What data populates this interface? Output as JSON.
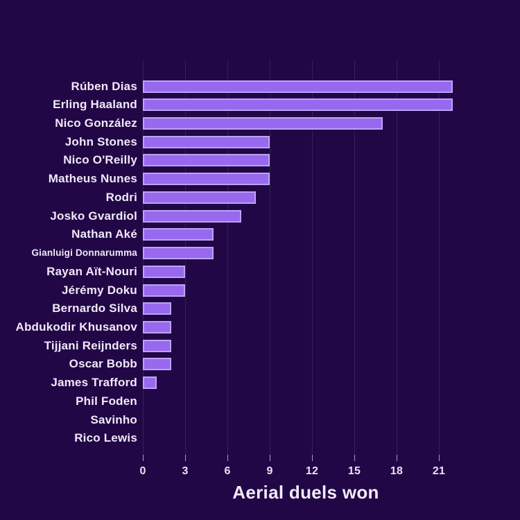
{
  "chart_data": {
    "type": "bar",
    "orientation": "horizontal",
    "title": "",
    "xlabel": "Aerial duels won",
    "ylabel": "",
    "categories": [
      "Rúben Dias",
      "Erling Haaland",
      "Nico González",
      "John Stones",
      "Nico O'Reilly",
      "Matheus Nunes",
      "Rodri",
      "Josko Gvardiol",
      "Nathan Aké",
      "Gianluigi Donnarumma",
      "Rayan Aït-Nouri",
      "Jérémy Doku",
      "Bernardo Silva",
      "Abdukodir Khusanov",
      "Tijjani Reijnders",
      "Oscar Bobb",
      "James Trafford",
      "Phil Foden",
      "Savinho",
      "Rico Lewis"
    ],
    "values": [
      22,
      22,
      17,
      9,
      9,
      9,
      8,
      7,
      5,
      5,
      3,
      3,
      2,
      2,
      2,
      2,
      1,
      0,
      0,
      0
    ],
    "xticks": [
      0,
      3,
      6,
      9,
      12,
      15,
      18,
      21
    ],
    "xlim": [
      0,
      23.1
    ],
    "grid": "vertical",
    "legend": false,
    "small_label_category": "Gianluigi Donnarumma",
    "colors": {
      "background": "#220747",
      "bar_fill": "#9868ef",
      "bar_edge": "#bba4f4",
      "grid_line": "#342058",
      "tick_mark": "#a89ec2",
      "label_text": "#f0e9f7",
      "tick_text": "#e9e2f2",
      "title_text": "#f2ecf8"
    }
  }
}
